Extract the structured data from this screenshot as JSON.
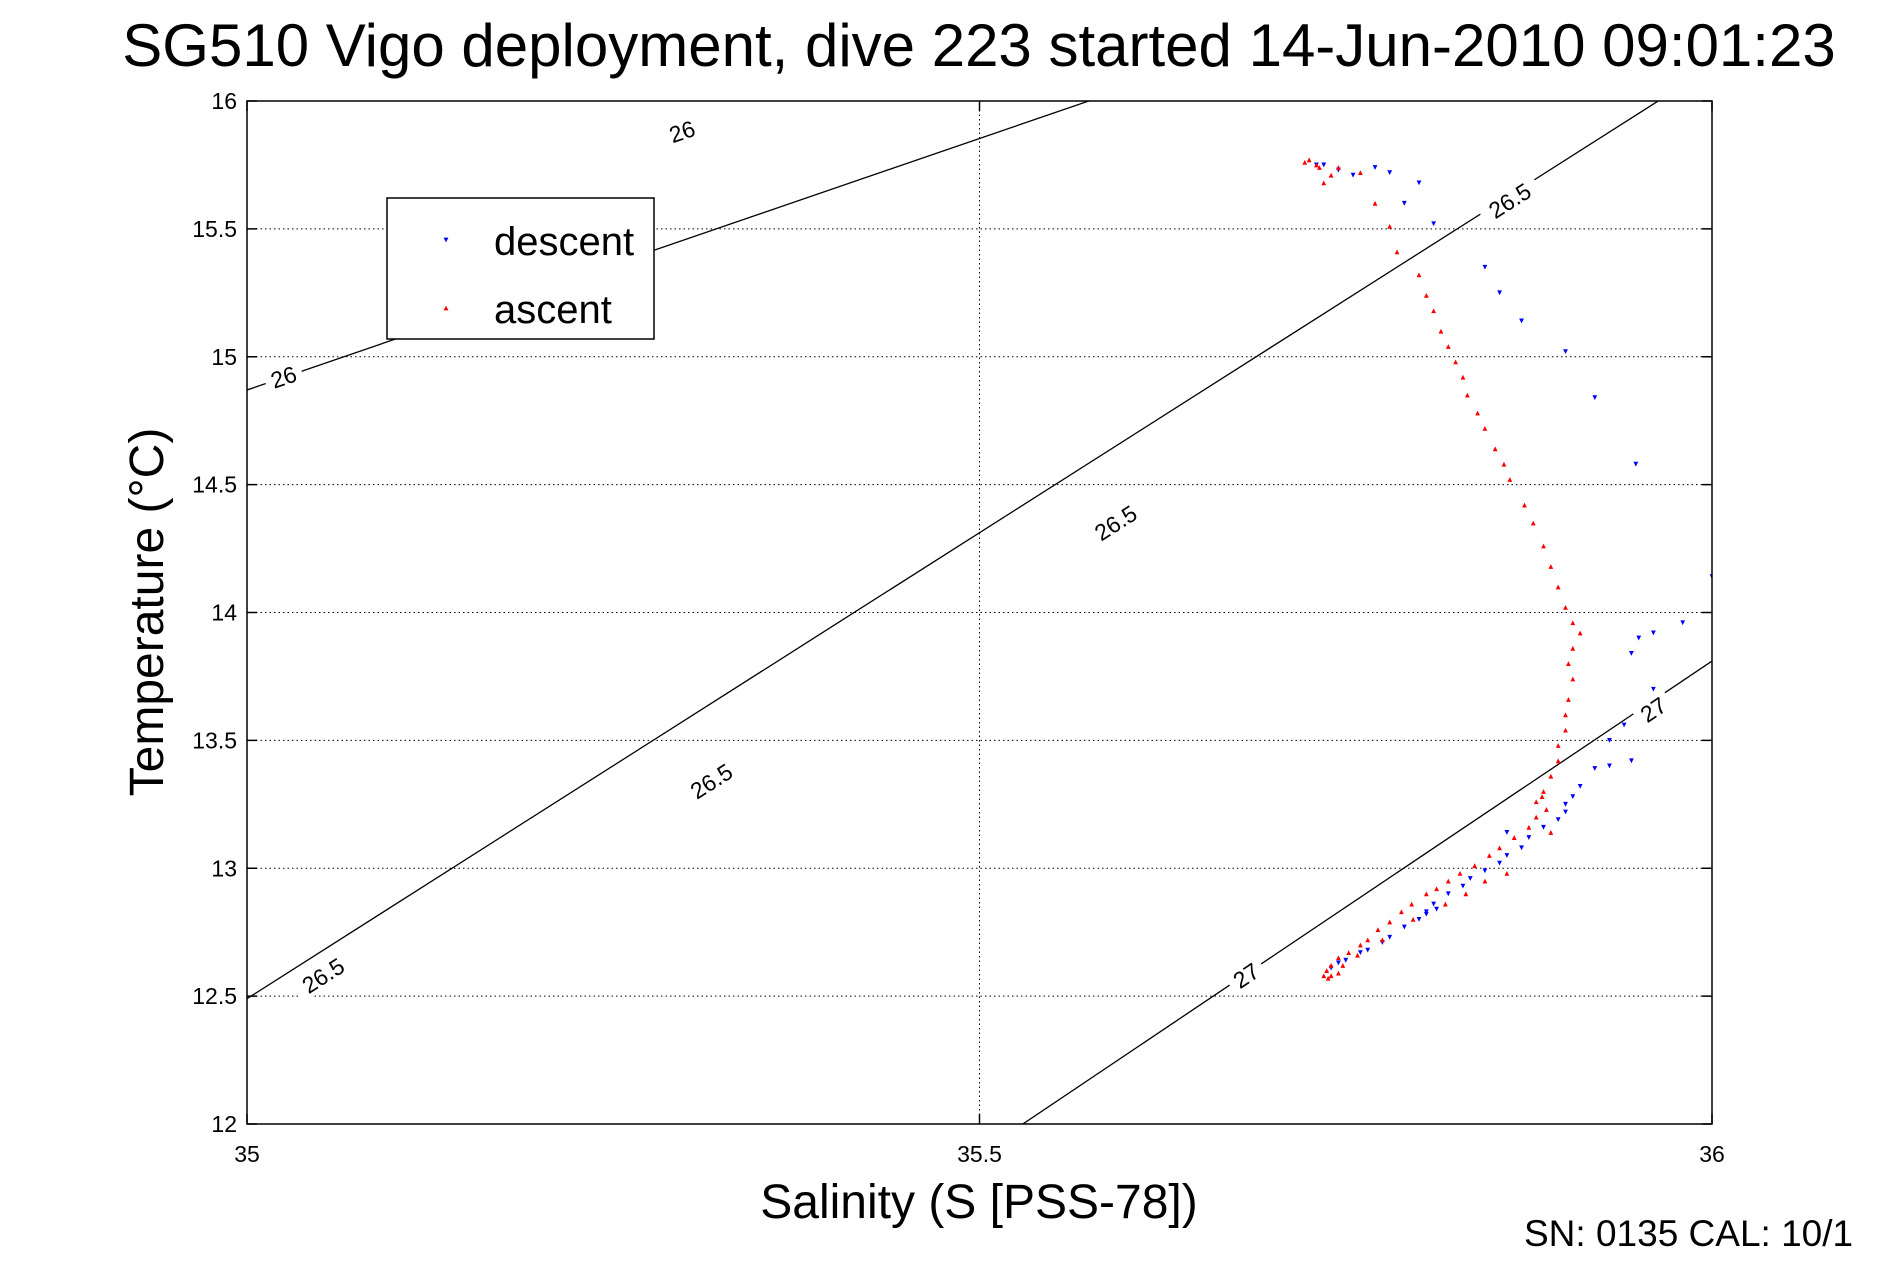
{
  "chart_data": {
    "type": "scatter",
    "title": "SG510 Vigo deployment, dive 223 started 14-Jun-2010 09:01:23",
    "xlabel": "Salinity (S [PSS-78])",
    "ylabel": "Temperature (°C)",
    "xlim": [
      35,
      36
    ],
    "ylim": [
      12,
      16
    ],
    "xticks": [
      "35",
      "35.5",
      "36"
    ],
    "yticks": [
      "12",
      "12.5",
      "13",
      "13.5",
      "14",
      "14.5",
      "15",
      "15.5",
      "16"
    ],
    "grid": true,
    "legend_position": "top-left",
    "footer": "SN: 0135  CAL: 10/1",
    "density_contours": [
      {
        "label": "26",
        "points": [
          [
            35.0,
            14.87
          ],
          [
            35.6,
            16.05
          ]
        ],
        "label_positions": [
          [
            35.025,
            14.92
          ],
          [
            35.297,
            15.88
          ]
        ]
      },
      {
        "label": "26.5",
        "points": [
          [
            35.0,
            12.49
          ],
          [
            35.977,
            16.05
          ]
        ],
        "label_positions": [
          [
            35.052,
            12.58
          ],
          [
            35.317,
            13.34
          ],
          [
            35.593,
            14.35
          ],
          [
            35.862,
            15.61
          ]
        ]
      },
      {
        "label": "27",
        "points": [
          [
            35.527,
            11.99
          ],
          [
            36.0,
            13.81
          ]
        ],
        "label_positions": [
          [
            35.682,
            12.58
          ],
          [
            35.96,
            13.62
          ]
        ]
      }
    ],
    "series": [
      {
        "name": "descent",
        "color": "#0000ff",
        "marker": "triangle-down",
        "points": [
          [
            35.73,
            15.75
          ],
          [
            35.735,
            15.75
          ],
          [
            35.745,
            15.73
          ],
          [
            35.755,
            15.71
          ],
          [
            35.77,
            15.74
          ],
          [
            35.78,
            15.72
          ],
          [
            35.79,
            15.6
          ],
          [
            35.8,
            15.68
          ],
          [
            35.81,
            15.52
          ],
          [
            35.845,
            15.35
          ],
          [
            35.855,
            15.25
          ],
          [
            35.87,
            15.14
          ],
          [
            35.9,
            15.02
          ],
          [
            35.92,
            14.84
          ],
          [
            35.948,
            14.58
          ],
          [
            36.0,
            14.14
          ],
          [
            35.98,
            13.96
          ],
          [
            35.96,
            13.92
          ],
          [
            35.95,
            13.9
          ],
          [
            35.945,
            13.84
          ],
          [
            35.96,
            13.7
          ],
          [
            35.95,
            13.62
          ],
          [
            35.94,
            13.56
          ],
          [
            35.93,
            13.5
          ],
          [
            35.945,
            13.42
          ],
          [
            35.93,
            13.4
          ],
          [
            35.92,
            13.39
          ],
          [
            35.91,
            13.32
          ],
          [
            35.905,
            13.28
          ],
          [
            35.9,
            13.25
          ],
          [
            35.9,
            13.22
          ],
          [
            35.895,
            13.19
          ],
          [
            35.885,
            13.16
          ],
          [
            35.875,
            13.12
          ],
          [
            35.87,
            13.08
          ],
          [
            35.86,
            13.05
          ],
          [
            35.855,
            13.02
          ],
          [
            35.845,
            12.99
          ],
          [
            35.835,
            12.96
          ],
          [
            35.83,
            12.93
          ],
          [
            35.82,
            12.9
          ],
          [
            35.81,
            12.86
          ],
          [
            35.805,
            12.83
          ],
          [
            35.8,
            12.8
          ],
          [
            35.79,
            12.77
          ],
          [
            35.78,
            12.73
          ],
          [
            35.775,
            12.71
          ],
          [
            35.765,
            12.68
          ],
          [
            35.76,
            12.67
          ],
          [
            35.75,
            12.64
          ],
          [
            35.745,
            12.63
          ],
          [
            35.74,
            12.61
          ],
          [
            35.805,
            12.82
          ],
          [
            35.812,
            12.84
          ],
          [
            35.86,
            13.14
          ]
        ]
      },
      {
        "name": "ascent",
        "color": "#ff0000",
        "marker": "triangle-up",
        "points": [
          [
            35.722,
            15.76
          ],
          [
            35.725,
            15.77
          ],
          [
            35.73,
            15.75
          ],
          [
            35.732,
            15.74
          ],
          [
            35.735,
            15.68
          ],
          [
            35.74,
            15.71
          ],
          [
            35.745,
            15.74
          ],
          [
            35.76,
            15.72
          ],
          [
            35.77,
            15.6
          ],
          [
            35.78,
            15.51
          ],
          [
            35.785,
            15.41
          ],
          [
            35.8,
            15.32
          ],
          [
            35.805,
            15.24
          ],
          [
            35.81,
            15.18
          ],
          [
            35.815,
            15.1
          ],
          [
            35.82,
            15.04
          ],
          [
            35.825,
            14.98
          ],
          [
            35.83,
            14.92
          ],
          [
            35.833,
            14.85
          ],
          [
            35.84,
            14.78
          ],
          [
            35.845,
            14.72
          ],
          [
            35.852,
            14.64
          ],
          [
            35.858,
            14.58
          ],
          [
            35.862,
            14.52
          ],
          [
            35.872,
            14.42
          ],
          [
            35.878,
            14.35
          ],
          [
            35.885,
            14.26
          ],
          [
            35.89,
            14.18
          ],
          [
            35.895,
            14.1
          ],
          [
            35.9,
            14.02
          ],
          [
            35.905,
            13.96
          ],
          [
            35.91,
            13.92
          ],
          [
            35.905,
            13.86
          ],
          [
            35.902,
            13.8
          ],
          [
            35.905,
            13.74
          ],
          [
            35.902,
            13.66
          ],
          [
            35.9,
            13.6
          ],
          [
            35.9,
            13.54
          ],
          [
            35.895,
            13.48
          ],
          [
            35.895,
            13.42
          ],
          [
            35.89,
            13.36
          ],
          [
            35.885,
            13.3
          ],
          [
            35.88,
            13.26
          ],
          [
            35.88,
            13.2
          ],
          [
            35.875,
            13.16
          ],
          [
            35.865,
            13.12
          ],
          [
            35.855,
            13.08
          ],
          [
            35.848,
            13.05
          ],
          [
            35.838,
            13.01
          ],
          [
            35.828,
            12.98
          ],
          [
            35.82,
            12.95
          ],
          [
            35.812,
            12.92
          ],
          [
            35.805,
            12.9
          ],
          [
            35.795,
            12.86
          ],
          [
            35.788,
            12.83
          ],
          [
            35.78,
            12.79
          ],
          [
            35.772,
            12.76
          ],
          [
            35.765,
            12.72
          ],
          [
            35.76,
            12.7
          ],
          [
            35.752,
            12.67
          ],
          [
            35.745,
            12.65
          ],
          [
            35.74,
            12.62
          ],
          [
            35.737,
            12.6
          ],
          [
            35.735,
            12.58
          ],
          [
            35.738,
            12.57
          ],
          [
            35.74,
            12.58
          ],
          [
            35.745,
            12.59
          ],
          [
            35.884,
            13.28
          ],
          [
            35.887,
            13.23
          ],
          [
            35.89,
            13.14
          ],
          [
            35.86,
            12.98
          ],
          [
            35.845,
            12.95
          ],
          [
            35.832,
            12.9
          ],
          [
            35.818,
            12.86
          ],
          [
            35.796,
            12.8
          ],
          [
            35.775,
            12.72
          ],
          [
            35.758,
            12.66
          ],
          [
            35.748,
            12.62
          ]
        ]
      }
    ]
  }
}
